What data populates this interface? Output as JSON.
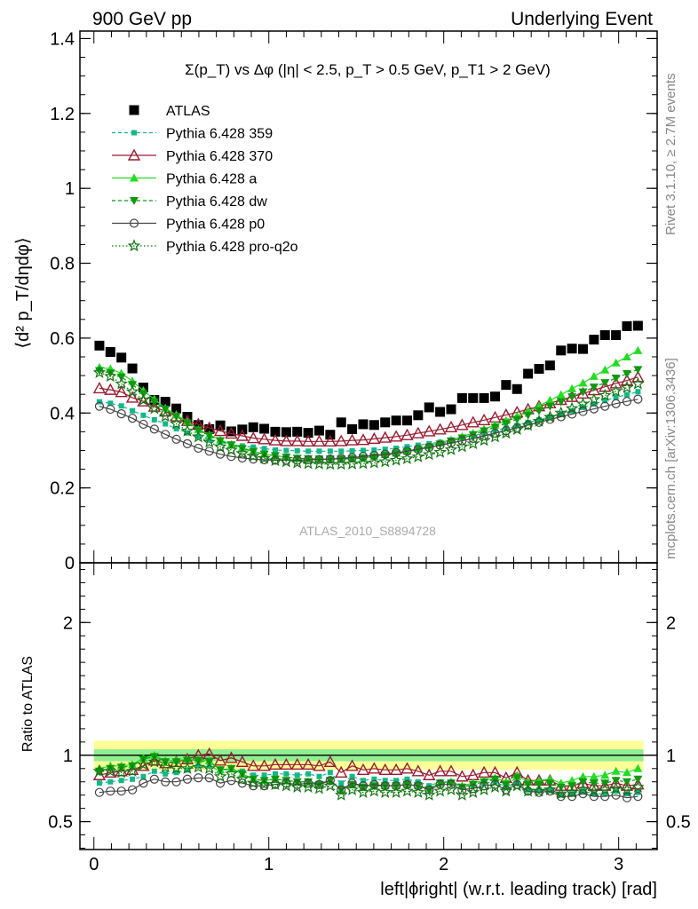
{
  "header": {
    "left": "900 GeV pp",
    "right": "Underlying Event"
  },
  "side_text": {
    "rivet": "Rivet 3.1.10, ≥ 2.7M events",
    "mcplots": "mcplots.cern.ch [arXiv:1306.3436]"
  },
  "colors": {
    "ATLAS": "#000000",
    "Pythia 6.428 359": "#12b88a",
    "Pythia 6.428 370": "#9b1b30",
    "Pythia 6.428 a": "#22dd22",
    "Pythia 6.428 dw": "#119911",
    "Pythia 6.428 p0": "#444444",
    "Pythia 6.428 pro-q2o": "#117711",
    "band_inner": "#90ee90",
    "band_outer": "#ffff99"
  },
  "chart_data": [
    {
      "type": "scatter",
      "title": "Σ(p_T) vs Δφ (|η| < 2.5, p_T > 0.5 GeV, p_T1 > 2 GeV)",
      "ylabel": "⟨d² p_T/dηdφ⟩",
      "xlabel": "",
      "watermark": "ATLAS_2010_S8894728",
      "xlim": [
        -0.08,
        3.22
      ],
      "ylim": [
        0,
        1.42
      ],
      "yticks": [
        "0",
        "0.2",
        "0.4",
        "0.6",
        "0.8",
        "1",
        "1.2",
        "1.4"
      ],
      "grid": false,
      "legend_position": "top-left",
      "x": [
        0.0314,
        0.0942,
        0.1571,
        0.2199,
        0.2827,
        0.3456,
        0.4084,
        0.4712,
        0.5341,
        0.5969,
        0.6597,
        0.7226,
        0.7854,
        0.8482,
        0.9111,
        0.9739,
        1.0367,
        1.0996,
        1.1624,
        1.2252,
        1.2881,
        1.3509,
        1.4137,
        1.4765,
        1.5394,
        1.6022,
        1.665,
        1.7279,
        1.7907,
        1.8535,
        1.9164,
        1.9792,
        2.042,
        2.1049,
        2.1677,
        2.2305,
        2.2934,
        2.3562,
        2.419,
        2.4819,
        2.5447,
        2.6075,
        2.6704,
        2.7332,
        2.796,
        2.8588,
        2.9217,
        2.9845,
        3.0473,
        3.1102
      ],
      "series": [
        {
          "name": "ATLAS",
          "marker": "filled-square",
          "values": [
            0.58,
            0.563,
            0.548,
            0.519,
            0.468,
            0.435,
            0.43,
            0.412,
            0.39,
            0.368,
            0.357,
            0.367,
            0.351,
            0.356,
            0.362,
            0.358,
            0.35,
            0.349,
            0.35,
            0.347,
            0.353,
            0.342,
            0.375,
            0.357,
            0.37,
            0.368,
            0.375,
            0.38,
            0.38,
            0.394,
            0.415,
            0.403,
            0.41,
            0.44,
            0.44,
            0.44,
            0.444,
            0.475,
            0.464,
            0.505,
            0.518,
            0.527,
            0.567,
            0.572,
            0.571,
            0.596,
            0.608,
            0.608,
            0.632,
            0.633
          ]
        },
        {
          "name": "Pythia 6.428 359",
          "marker": "small-square-dashed",
          "values": [
            0.43,
            0.426,
            0.419,
            0.406,
            0.394,
            0.382,
            0.371,
            0.358,
            0.347,
            0.337,
            0.328,
            0.322,
            0.316,
            0.312,
            0.309,
            0.305,
            0.301,
            0.3,
            0.299,
            0.298,
            0.298,
            0.298,
            0.298,
            0.299,
            0.3,
            0.301,
            0.303,
            0.306,
            0.31,
            0.314,
            0.318,
            0.322,
            0.328,
            0.334,
            0.339,
            0.346,
            0.353,
            0.36,
            0.367,
            0.375,
            0.382,
            0.39,
            0.398,
            0.406,
            0.415,
            0.424,
            0.433,
            0.442,
            0.449,
            0.457
          ]
        },
        {
          "name": "Pythia 6.428 370",
          "marker": "open-triangle",
          "values": [
            0.466,
            0.462,
            0.456,
            0.441,
            0.431,
            0.417,
            0.404,
            0.391,
            0.379,
            0.37,
            0.36,
            0.352,
            0.345,
            0.339,
            0.333,
            0.33,
            0.327,
            0.325,
            0.325,
            0.324,
            0.324,
            0.324,
            0.325,
            0.327,
            0.328,
            0.331,
            0.334,
            0.337,
            0.341,
            0.346,
            0.351,
            0.356,
            0.362,
            0.368,
            0.375,
            0.381,
            0.388,
            0.395,
            0.402,
            0.41,
            0.418,
            0.426,
            0.435,
            0.443,
            0.452,
            0.461,
            0.47,
            0.479,
            0.487,
            0.496
          ]
        },
        {
          "name": "Pythia 6.428 a",
          "marker": "filled-triangle",
          "values": [
            0.522,
            0.518,
            0.506,
            0.485,
            0.46,
            0.437,
            0.413,
            0.395,
            0.377,
            0.356,
            0.342,
            0.328,
            0.316,
            0.307,
            0.298,
            0.29,
            0.286,
            0.282,
            0.279,
            0.278,
            0.277,
            0.277,
            0.278,
            0.279,
            0.281,
            0.284,
            0.289,
            0.293,
            0.298,
            0.305,
            0.312,
            0.32,
            0.328,
            0.337,
            0.346,
            0.357,
            0.368,
            0.38,
            0.392,
            0.405,
            0.419,
            0.434,
            0.449,
            0.465,
            0.48,
            0.498,
            0.515,
            0.534,
            0.55,
            0.567
          ]
        },
        {
          "name": "Pythia 6.428 dw",
          "marker": "filled-triangle-down-dashed",
          "values": [
            0.513,
            0.507,
            0.496,
            0.476,
            0.452,
            0.43,
            0.41,
            0.391,
            0.373,
            0.355,
            0.34,
            0.326,
            0.315,
            0.305,
            0.297,
            0.29,
            0.286,
            0.282,
            0.279,
            0.278,
            0.277,
            0.277,
            0.277,
            0.278,
            0.28,
            0.283,
            0.287,
            0.291,
            0.296,
            0.302,
            0.309,
            0.317,
            0.325,
            0.333,
            0.342,
            0.352,
            0.362,
            0.372,
            0.383,
            0.394,
            0.406,
            0.418,
            0.43,
            0.443,
            0.456,
            0.469,
            0.481,
            0.493,
            0.505,
            0.516
          ]
        },
        {
          "name": "Pythia 6.428 p0",
          "marker": "open-circle",
          "values": [
            0.418,
            0.41,
            0.398,
            0.386,
            0.37,
            0.357,
            0.343,
            0.33,
            0.318,
            0.306,
            0.298,
            0.29,
            0.284,
            0.28,
            0.277,
            0.275,
            0.274,
            0.274,
            0.274,
            0.275,
            0.276,
            0.277,
            0.279,
            0.281,
            0.284,
            0.287,
            0.29,
            0.294,
            0.298,
            0.303,
            0.308,
            0.314,
            0.32,
            0.326,
            0.332,
            0.339,
            0.346,
            0.353,
            0.36,
            0.368,
            0.375,
            0.383,
            0.39,
            0.397,
            0.404,
            0.411,
            0.418,
            0.425,
            0.431,
            0.437
          ]
        },
        {
          "name": "Pythia 6.428 pro-q2o",
          "marker": "open-star-dotted",
          "values": [
            0.508,
            0.498,
            0.478,
            0.457,
            0.435,
            0.412,
            0.391,
            0.371,
            0.352,
            0.336,
            0.322,
            0.31,
            0.301,
            0.292,
            0.285,
            0.279,
            0.273,
            0.27,
            0.267,
            0.265,
            0.264,
            0.263,
            0.263,
            0.264,
            0.265,
            0.267,
            0.27,
            0.274,
            0.278,
            0.283,
            0.289,
            0.295,
            0.302,
            0.31,
            0.318,
            0.327,
            0.336,
            0.346,
            0.356,
            0.367,
            0.378,
            0.389,
            0.4,
            0.412,
            0.424,
            0.436,
            0.447,
            0.458,
            0.468,
            0.478
          ]
        }
      ]
    },
    {
      "type": "scatter",
      "title": "",
      "ylabel": "Ratio to ATLAS",
      "xlabel": "left|ϕright| (w.r.t. leading track) [rad]",
      "xlim": [
        -0.08,
        3.22
      ],
      "ylim": [
        0.29,
        2.45
      ],
      "yticks": [
        "0.5",
        "1",
        "2"
      ],
      "xticks": [
        "0",
        "1",
        "2",
        "3"
      ],
      "band_inner": [
        0.955,
        1.045
      ],
      "band_outer": [
        0.89,
        1.11
      ],
      "series": [
        {
          "name": "Pythia 6.428 359",
          "values": [
            0.79,
            0.8,
            0.81,
            0.82,
            0.84,
            0.88,
            0.86,
            0.87,
            0.89,
            0.92,
            0.92,
            0.88,
            0.9,
            0.88,
            0.85,
            0.85,
            0.86,
            0.86,
            0.85,
            0.86,
            0.84,
            0.87,
            0.79,
            0.84,
            0.81,
            0.82,
            0.81,
            0.81,
            0.82,
            0.8,
            0.77,
            0.8,
            0.8,
            0.76,
            0.77,
            0.79,
            0.8,
            0.76,
            0.79,
            0.74,
            0.74,
            0.74,
            0.7,
            0.71,
            0.73,
            0.71,
            0.71,
            0.73,
            0.71,
            0.72
          ]
        },
        {
          "name": "Pythia 6.428 370",
          "values": [
            0.85,
            0.87,
            0.88,
            0.89,
            0.92,
            0.96,
            0.94,
            0.95,
            0.97,
            1.0,
            1.01,
            0.96,
            0.98,
            0.95,
            0.92,
            0.92,
            0.93,
            0.93,
            0.93,
            0.93,
            0.92,
            0.95,
            0.87,
            0.92,
            0.89,
            0.9,
            0.89,
            0.89,
            0.9,
            0.88,
            0.85,
            0.88,
            0.88,
            0.84,
            0.85,
            0.87,
            0.87,
            0.83,
            0.87,
            0.81,
            0.81,
            0.81,
            0.77,
            0.77,
            0.79,
            0.77,
            0.77,
            0.79,
            0.77,
            0.78
          ]
        },
        {
          "name": "Pythia 6.428 a",
          "values": [
            0.9,
            0.92,
            0.92,
            0.93,
            0.98,
            1.0,
            0.96,
            0.96,
            0.97,
            0.97,
            0.96,
            0.89,
            0.9,
            0.86,
            0.82,
            0.81,
            0.82,
            0.81,
            0.8,
            0.8,
            0.79,
            0.81,
            0.74,
            0.78,
            0.76,
            0.77,
            0.77,
            0.77,
            0.78,
            0.77,
            0.75,
            0.79,
            0.8,
            0.77,
            0.79,
            0.81,
            0.83,
            0.8,
            0.85,
            0.8,
            0.81,
            0.82,
            0.79,
            0.81,
            0.84,
            0.84,
            0.85,
            0.88,
            0.87,
            0.9
          ]
        },
        {
          "name": "Pythia 6.428 dw",
          "values": [
            0.88,
            0.9,
            0.91,
            0.92,
            0.97,
            0.99,
            0.95,
            0.95,
            0.96,
            0.96,
            0.95,
            0.89,
            0.9,
            0.86,
            0.82,
            0.81,
            0.82,
            0.81,
            0.8,
            0.8,
            0.78,
            0.81,
            0.74,
            0.78,
            0.76,
            0.77,
            0.77,
            0.77,
            0.78,
            0.77,
            0.74,
            0.79,
            0.79,
            0.76,
            0.78,
            0.8,
            0.82,
            0.78,
            0.83,
            0.78,
            0.78,
            0.79,
            0.76,
            0.77,
            0.8,
            0.79,
            0.79,
            0.81,
            0.8,
            0.82
          ]
        },
        {
          "name": "Pythia 6.428 p0",
          "values": [
            0.72,
            0.73,
            0.73,
            0.74,
            0.79,
            0.82,
            0.8,
            0.8,
            0.82,
            0.83,
            0.83,
            0.79,
            0.81,
            0.79,
            0.77,
            0.77,
            0.78,
            0.79,
            0.78,
            0.79,
            0.78,
            0.81,
            0.74,
            0.79,
            0.77,
            0.78,
            0.77,
            0.77,
            0.78,
            0.77,
            0.74,
            0.78,
            0.78,
            0.74,
            0.75,
            0.77,
            0.78,
            0.74,
            0.78,
            0.73,
            0.72,
            0.73,
            0.69,
            0.69,
            0.71,
            0.69,
            0.69,
            0.7,
            0.68,
            0.69
          ]
        },
        {
          "name": "Pythia 6.428 pro-q2o",
          "values": [
            0.88,
            0.88,
            0.87,
            0.88,
            0.93,
            0.95,
            0.91,
            0.9,
            0.9,
            0.91,
            0.9,
            0.84,
            0.86,
            0.82,
            0.79,
            0.78,
            0.78,
            0.77,
            0.76,
            0.76,
            0.75,
            0.77,
            0.7,
            0.74,
            0.72,
            0.73,
            0.72,
            0.72,
            0.73,
            0.72,
            0.7,
            0.73,
            0.74,
            0.7,
            0.72,
            0.74,
            0.76,
            0.73,
            0.77,
            0.73,
            0.73,
            0.74,
            0.71,
            0.72,
            0.74,
            0.73,
            0.74,
            0.75,
            0.74,
            0.76
          ]
        }
      ]
    }
  ]
}
